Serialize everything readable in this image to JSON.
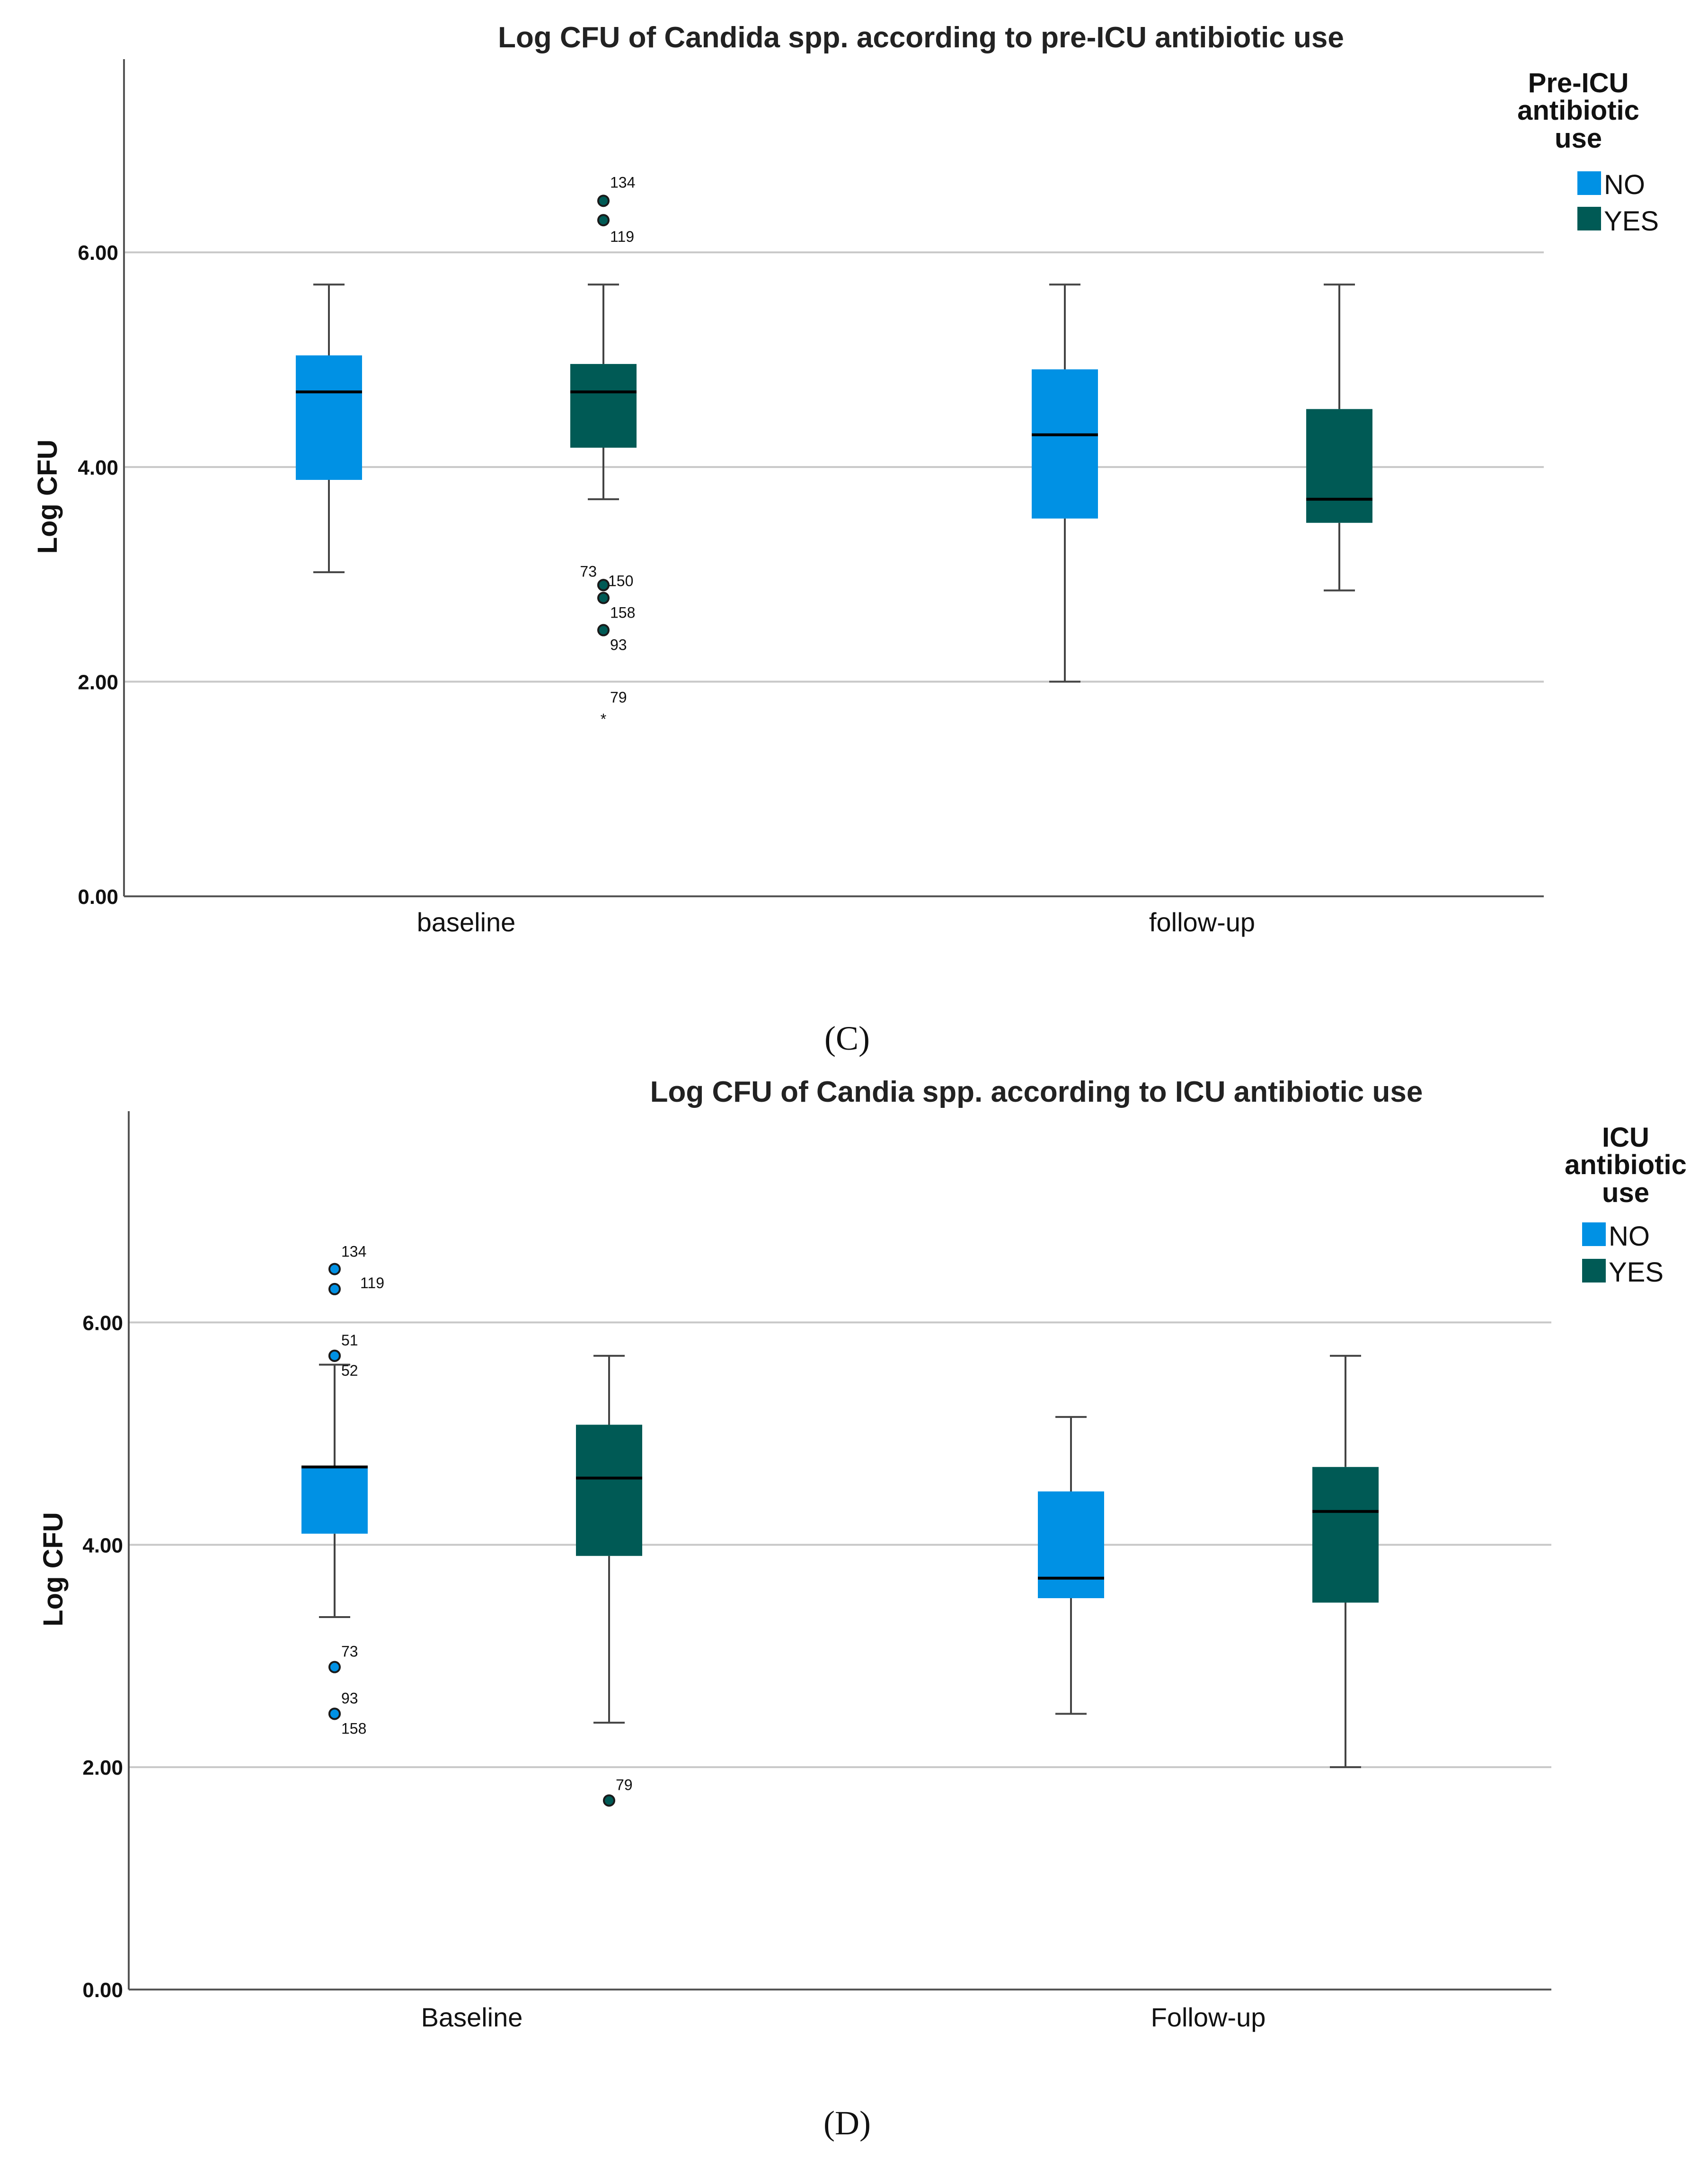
{
  "colors": {
    "no": "#0091e4",
    "yes": "#005a55",
    "grid": "#c8c8c8",
    "axis": "#555555",
    "whisker": "#444444",
    "median": "#000000"
  },
  "chart_data": [
    {
      "type": "box",
      "panel_label": "(C)",
      "title": "Log CFU of Candida spp. according to pre-ICU antibiotic use",
      "ylabel": "Log CFU",
      "xlabel": "",
      "ylim": [
        0,
        7.8
      ],
      "yticks": [
        0,
        2,
        4,
        6
      ],
      "ytick_labels": [
        "0.00",
        "2.00",
        "4.00",
        "6.00"
      ],
      "categories": [
        "baseline",
        "follow-up"
      ],
      "legend": {
        "title": [
          "Pre-ICU",
          "antibiotic",
          "use"
        ],
        "items": [
          "NO",
          "YES"
        ],
        "placement": "right"
      },
      "series": [
        {
          "name": "NO",
          "boxes": [
            {
              "category": "baseline",
              "min": 3.02,
              "q1": 3.88,
              "median": 4.7,
              "q3": 5.04,
              "max": 5.7,
              "outliers": []
            },
            {
              "category": "follow-up",
              "min": 2.0,
              "q1": 3.52,
              "median": 4.3,
              "q3": 4.91,
              "max": 5.7,
              "outliers": []
            }
          ]
        },
        {
          "name": "YES",
          "boxes": [
            {
              "category": "baseline",
              "min": 3.7,
              "q1": 4.18,
              "median": 4.7,
              "q3": 4.96,
              "max": 5.7,
              "outliers": [
                {
                  "id": "134",
                  "value": 6.48,
                  "shape": "circle"
                },
                {
                  "id": "119",
                  "value": 6.3,
                  "shape": "circle"
                },
                {
                  "id": "73",
                  "value": 2.9,
                  "shape": "circle"
                },
                {
                  "id": "150",
                  "value": 2.9,
                  "shape": "circle"
                },
                {
                  "id": "158",
                  "value": 2.78,
                  "shape": "circle"
                },
                {
                  "id": "93",
                  "value": 2.48,
                  "shape": "circle"
                },
                {
                  "id": "79",
                  "value": 1.7,
                  "shape": "star"
                }
              ]
            },
            {
              "category": "follow-up",
              "min": 2.85,
              "q1": 3.48,
              "median": 3.7,
              "q3": 4.54,
              "max": 5.7,
              "outliers": []
            }
          ]
        }
      ]
    },
    {
      "type": "box",
      "panel_label": "(D)",
      "title": "Log CFU of Candia spp. according to ICU antibiotic use",
      "ylabel": "Log CFU",
      "xlabel": "",
      "ylim": [
        0,
        7.9
      ],
      "yticks": [
        0,
        2,
        4,
        6
      ],
      "ytick_labels": [
        "0.00",
        "2.00",
        "4.00",
        "6.00"
      ],
      "categories": [
        "Baseline",
        "Follow-up"
      ],
      "legend": {
        "title": [
          "ICU",
          "antibiotic",
          "use"
        ],
        "items": [
          "NO",
          "YES"
        ],
        "placement": "right"
      },
      "series": [
        {
          "name": "NO",
          "boxes": [
            {
              "category": "Baseline",
              "min": 3.35,
              "q1": 4.1,
              "median": 4.7,
              "q3": 4.7,
              "max": 5.62,
              "outliers": [
                {
                  "id": "134",
                  "value": 6.48,
                  "shape": "circle"
                },
                {
                  "id": "119",
                  "value": 6.3,
                  "shape": "circle"
                },
                {
                  "id": "51",
                  "value": 5.7,
                  "shape": "circle"
                },
                {
                  "id": "52",
                  "value": 5.7,
                  "shape": "circle"
                },
                {
                  "id": "73",
                  "value": 2.9,
                  "shape": "circle"
                },
                {
                  "id": "93",
                  "value": 2.48,
                  "shape": "circle"
                },
                {
                  "id": "158",
                  "value": 2.48,
                  "shape": "circle"
                }
              ]
            },
            {
              "category": "Follow-up",
              "min": 2.48,
              "q1": 3.52,
              "median": 3.7,
              "q3": 4.48,
              "max": 5.15,
              "outliers": []
            }
          ]
        },
        {
          "name": "YES",
          "boxes": [
            {
              "category": "Baseline",
              "min": 2.4,
              "q1": 3.9,
              "median": 4.6,
              "q3": 5.08,
              "max": 5.7,
              "outliers": [
                {
                  "id": "79",
                  "value": 1.7,
                  "shape": "circle"
                }
              ]
            },
            {
              "category": "Follow-up",
              "min": 2.0,
              "q1": 3.48,
              "median": 4.3,
              "q3": 4.7,
              "max": 5.7,
              "outliers": []
            }
          ]
        }
      ]
    }
  ]
}
